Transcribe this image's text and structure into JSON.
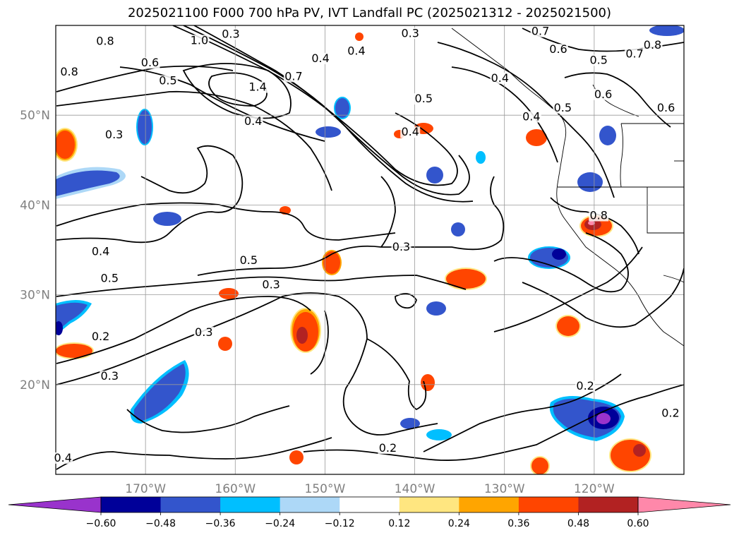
{
  "title": "2025021100 F000 700 hPa PV, IVT Landfall PC (2025021312 - 2025021500)",
  "map": {
    "lon_range": [
      -180,
      -110
    ],
    "lat_range": [
      10,
      60
    ],
    "lon_ticks": [
      {
        "lon": -170,
        "label": "170°W"
      },
      {
        "lon": -160,
        "label": "160°W"
      },
      {
        "lon": -150,
        "label": "150°W"
      },
      {
        "lon": -140,
        "label": "140°W"
      },
      {
        "lon": -130,
        "label": "130°W"
      },
      {
        "lon": -120,
        "label": "120°W"
      }
    ],
    "lat_ticks": [
      {
        "lat": 50,
        "label": "50°N"
      },
      {
        "lat": 40,
        "label": "40°N"
      },
      {
        "lat": 30,
        "label": "30°N"
      },
      {
        "lat": 20,
        "label": "20°N"
      }
    ],
    "grid": true
  },
  "colorbar": {
    "ticks": [
      "−0.60",
      "−0.48",
      "−0.36",
      "−0.24",
      "−0.12",
      "0.12",
      "0.24",
      "0.36",
      "0.48",
      "0.60"
    ],
    "colors": [
      "#9933cc",
      "#000099",
      "#3355cc",
      "#00bfff",
      "#add8f7",
      "#ffffff",
      "#ffe680",
      "#ffa500",
      "#ff4500",
      "#b22222",
      "#ff88aa"
    ]
  },
  "contour_labels": [
    {
      "text": "0.8",
      "lon": -174.5,
      "lat": 57.9
    },
    {
      "text": "0.8",
      "lon": -178.5,
      "lat": 54.5
    },
    {
      "text": "1.0",
      "lon": -164.0,
      "lat": 58.0
    },
    {
      "text": "0.3",
      "lon": -160.5,
      "lat": 58.7
    },
    {
      "text": "0.6",
      "lon": -169.5,
      "lat": 55.5
    },
    {
      "text": "0.5",
      "lon": -167.5,
      "lat": 53.5
    },
    {
      "text": "1.4",
      "lon": -157.5,
      "lat": 52.8
    },
    {
      "text": "0.7",
      "lon": -153.5,
      "lat": 54.0
    },
    {
      "text": "0.4",
      "lon": -150.5,
      "lat": 56.0
    },
    {
      "text": "0.4",
      "lon": -158.0,
      "lat": 49.0
    },
    {
      "text": "0.4",
      "lon": -146.5,
      "lat": 56.8
    },
    {
      "text": "0.3",
      "lon": -140.5,
      "lat": 58.8
    },
    {
      "text": "0.5",
      "lon": -139.0,
      "lat": 51.5
    },
    {
      "text": "0.4",
      "lon": -140.5,
      "lat": 47.8
    },
    {
      "text": "0.3",
      "lon": -173.5,
      "lat": 47.5
    },
    {
      "text": "0.7",
      "lon": -126.0,
      "lat": 59.0
    },
    {
      "text": "0.6",
      "lon": -124.0,
      "lat": 57.0
    },
    {
      "text": "0.8",
      "lon": -113.5,
      "lat": 57.5
    },
    {
      "text": "0.7",
      "lon": -115.5,
      "lat": 56.5
    },
    {
      "text": "0.5",
      "lon": -119.5,
      "lat": 55.8
    },
    {
      "text": "0.6",
      "lon": -119.0,
      "lat": 52.0
    },
    {
      "text": "0.6",
      "lon": -112.0,
      "lat": 50.5
    },
    {
      "text": "0.5",
      "lon": -123.5,
      "lat": 50.5
    },
    {
      "text": "0.4",
      "lon": -130.5,
      "lat": 53.8
    },
    {
      "text": "0.4",
      "lon": -127.0,
      "lat": 49.5
    },
    {
      "text": "0.4",
      "lon": -175.0,
      "lat": 34.5
    },
    {
      "text": "0.5",
      "lon": -174.0,
      "lat": 31.5
    },
    {
      "text": "0.5",
      "lon": -158.5,
      "lat": 33.5
    },
    {
      "text": "0.3",
      "lon": -156.0,
      "lat": 30.8
    },
    {
      "text": "0.3",
      "lon": -141.5,
      "lat": 35.0
    },
    {
      "text": "0.3",
      "lon": -163.5,
      "lat": 25.5
    },
    {
      "text": "0.2",
      "lon": -175.0,
      "lat": 25.0
    },
    {
      "text": "0.3",
      "lon": -174.0,
      "lat": 20.6
    },
    {
      "text": "0.2",
      "lon": -143.0,
      "lat": 12.6
    },
    {
      "text": "0.2",
      "lon": -121.0,
      "lat": 19.5
    },
    {
      "text": "0.2",
      "lon": -111.5,
      "lat": 16.5
    },
    {
      "text": "0.4",
      "lon": -179.2,
      "lat": 11.5
    },
    {
      "text": "0.8",
      "lon": -119.5,
      "lat": 38.5
    }
  ]
}
